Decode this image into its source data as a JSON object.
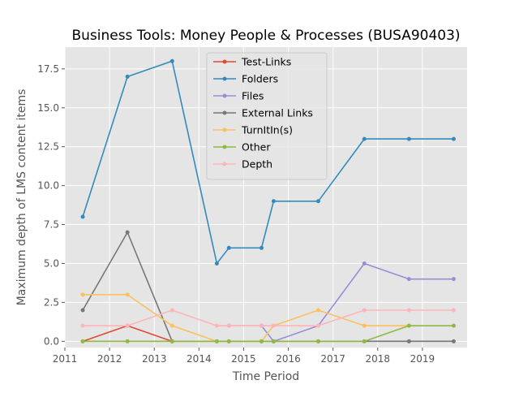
{
  "chart_data": {
    "type": "line",
    "title": "Business Tools: Money People & Processes (BUSA90403)",
    "xlabel": "Time Period",
    "ylabel": "Maximum depth of LMS content items",
    "xlim": [
      2011.0,
      2020.0
    ],
    "ylim": [
      -0.4,
      18.9
    ],
    "x_ticks": [
      2011,
      2012,
      2013,
      2014,
      2015,
      2016,
      2017,
      2018,
      2019
    ],
    "x_tick_labels": [
      "2011",
      "2012",
      "2013",
      "2014",
      "2015",
      "2016",
      "2017",
      "2018",
      "2019"
    ],
    "y_ticks": [
      0,
      2.5,
      5,
      7.5,
      10,
      12.5,
      15,
      17.5
    ],
    "y_tick_labels": [
      "0.0",
      "2.5",
      "5.0",
      "7.5",
      "10.0",
      "12.5",
      "15.0",
      "17.5"
    ],
    "grid": true,
    "legend_position": "top-center",
    "series": [
      {
        "name": "Test-Links",
        "color": "#E24A33",
        "x": [
          2011.4,
          2012.4,
          2013.4
        ],
        "y": [
          0,
          1,
          0
        ]
      },
      {
        "name": "Folders",
        "color": "#348ABD",
        "x": [
          2011.4,
          2012.4,
          2013.4,
          2014.4,
          2014.67,
          2015.4,
          2015.67,
          2016.67,
          2017.7,
          2018.7,
          2019.7
        ],
        "y": [
          8,
          17,
          18,
          5,
          6,
          6,
          9,
          9,
          13,
          13,
          13
        ]
      },
      {
        "name": "Files",
        "color": "#988ED5",
        "x": [
          2014.67,
          2015.4,
          2015.67,
          2016.67,
          2017.7,
          2018.7,
          2019.7
        ],
        "y": [
          1,
          1,
          0,
          1,
          5,
          4,
          4
        ]
      },
      {
        "name": "External Links",
        "color": "#777777",
        "x": [
          2011.4,
          2012.4,
          2013.4,
          2014.4,
          2014.67,
          2015.4,
          2015.67,
          2016.67,
          2017.7,
          2018.7,
          2019.7
        ],
        "y": [
          2,
          7,
          0,
          0,
          0,
          0,
          0,
          0,
          0,
          0,
          0
        ]
      },
      {
        "name": "TurnItIn(s)",
        "color": "#FBC15E",
        "x": [
          2011.4,
          2012.4,
          2013.4,
          2014.4,
          2015.4,
          2015.67,
          2016.67,
          2017.7,
          2018.7
        ],
        "y": [
          3,
          3,
          1,
          0,
          0,
          1,
          2,
          1,
          1
        ]
      },
      {
        "name": "Other",
        "color": "#8EBA42",
        "x": [
          2011.4,
          2012.4,
          2013.4,
          2014.4,
          2014.67,
          2015.4,
          2015.67,
          2016.67,
          2017.7,
          2018.7,
          2019.7
        ],
        "y": [
          0,
          0,
          0,
          0,
          0,
          0,
          0,
          0,
          0,
          1,
          1
        ]
      },
      {
        "name": "Depth",
        "color": "#FFB5B8",
        "x": [
          2011.4,
          2012.4,
          2013.4,
          2014.4,
          2014.67,
          2015.4,
          2015.67,
          2016.67,
          2017.7,
          2018.7,
          2019.7
        ],
        "y": [
          1,
          1,
          2,
          1,
          1,
          1,
          1,
          1,
          2,
          2,
          2
        ]
      }
    ]
  }
}
